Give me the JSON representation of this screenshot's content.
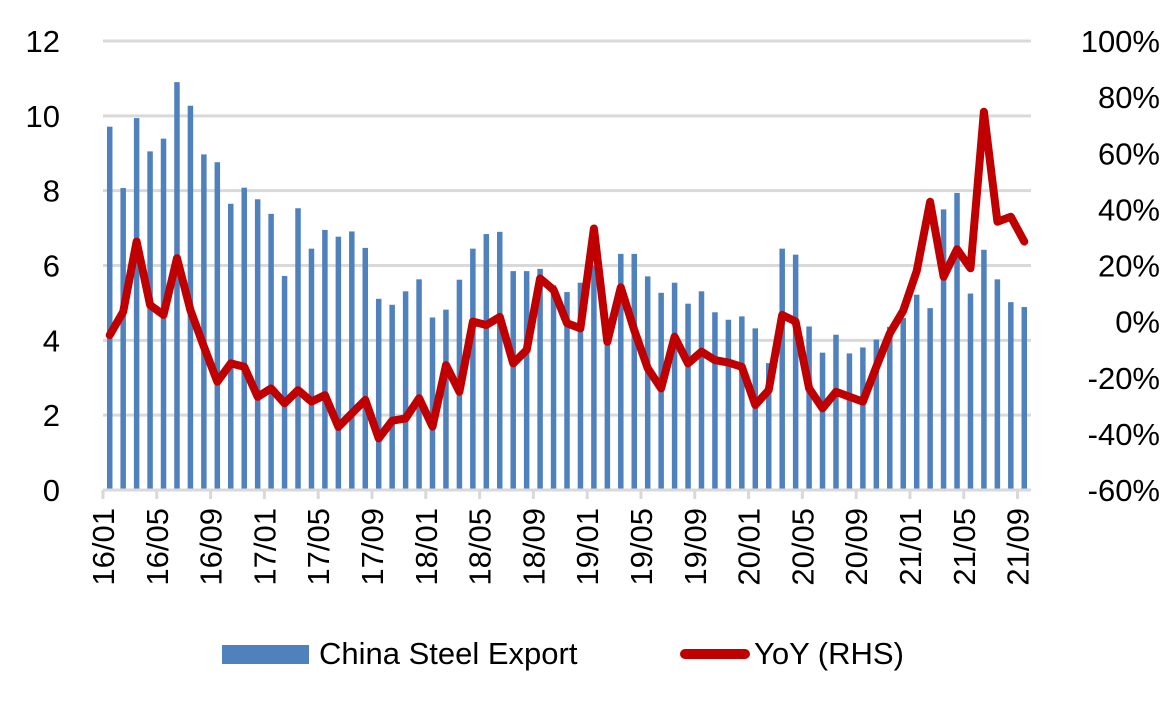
{
  "chart_data": {
    "type": "bar",
    "title": "",
    "xlabel": "",
    "ylabel": "",
    "y2label": "",
    "ylim": [
      0,
      12
    ],
    "y2lim": [
      -60,
      100
    ],
    "grid": true,
    "legend_position": "bottom",
    "yticks": [
      "0",
      "2",
      "4",
      "6",
      "8",
      "10",
      "12"
    ],
    "y2ticks": [
      "-60%",
      "-40%",
      "-20%",
      "0%",
      "20%",
      "40%",
      "60%",
      "80%",
      "100%"
    ],
    "x_tick_labels": [
      "16/01",
      "16/05",
      "16/09",
      "17/01",
      "17/05",
      "17/09",
      "18/01",
      "18/05",
      "18/09",
      "19/01",
      "19/05",
      "19/09",
      "20/01",
      "20/05",
      "20/09",
      "21/01",
      "21/05",
      "21/09"
    ],
    "categories": [
      "16/01",
      "16/02",
      "16/03",
      "16/04",
      "16/05",
      "16/06",
      "16/07",
      "16/08",
      "16/09",
      "16/10",
      "16/11",
      "16/12",
      "17/01",
      "17/02",
      "17/03",
      "17/04",
      "17/05",
      "17/06",
      "17/07",
      "17/08",
      "17/09",
      "17/10",
      "17/11",
      "17/12",
      "18/01",
      "18/02",
      "18/03",
      "18/04",
      "18/05",
      "18/06",
      "18/07",
      "18/08",
      "18/09",
      "18/10",
      "18/11",
      "18/12",
      "19/01",
      "19/02",
      "19/03",
      "19/04",
      "19/05",
      "19/06",
      "19/07",
      "19/08",
      "19/09",
      "19/10",
      "19/11",
      "19/12",
      "20/01",
      "20/02",
      "20/03",
      "20/04",
      "20/05",
      "20/06",
      "20/07",
      "20/08",
      "20/09",
      "20/10",
      "20/11",
      "20/12",
      "21/01",
      "21/02",
      "21/03",
      "21/04",
      "21/05",
      "21/06",
      "21/07",
      "21/08",
      "21/09"
    ],
    "series": [
      {
        "name": "China Steel Export",
        "type": "bar",
        "axis": "left",
        "color": "#4f81bd",
        "values": [
          9.71,
          8.07,
          9.94,
          9.05,
          9.39,
          10.9,
          10.27,
          8.97,
          8.76,
          7.65,
          8.08,
          7.77,
          7.38,
          5.72,
          7.53,
          6.45,
          6.95,
          6.77,
          6.91,
          6.47,
          5.11,
          4.95,
          5.31,
          5.63,
          4.61,
          4.82,
          5.62,
          6.45,
          6.84,
          6.9,
          5.85,
          5.85,
          5.91,
          5.47,
          5.29,
          5.54,
          6.0,
          4.4,
          6.31,
          6.31,
          5.71,
          5.27,
          5.54,
          4.98,
          5.31,
          4.75,
          4.55,
          4.64,
          4.32,
          3.39,
          6.45,
          6.29,
          4.37,
          3.67,
          4.15,
          3.65,
          3.81,
          4.02,
          4.36,
          4.6,
          5.22,
          4.86,
          7.5,
          7.94,
          5.25,
          6.42,
          5.63,
          5.02,
          4.89
        ]
      },
      {
        "name": "YoY (RHS)",
        "type": "line",
        "axis": "right",
        "unit": "%",
        "color": "#c00000",
        "values": [
          -4.8,
          3.5,
          28.5,
          5.9,
          2.4,
          22.6,
          4.1,
          -8.9,
          -21.4,
          -14.9,
          -16.1,
          -26.8,
          -23.8,
          -29.1,
          -24.4,
          -28.5,
          -26.2,
          -37.5,
          -32.7,
          -27.9,
          -41.6,
          -35.3,
          -34.5,
          -27.3,
          -37.4,
          -15.5,
          -25.0,
          0.0,
          -1.2,
          1.7,
          -14.9,
          -10.1,
          15.4,
          11.3,
          -0.6,
          -2.4,
          33.2,
          -7.2,
          12.2,
          -3.0,
          -16.6,
          -23.8,
          -5.4,
          -14.9,
          -10.7,
          -13.7,
          -14.6,
          -16.1,
          -29.7,
          -24.4,
          2.4,
          0.0,
          -23.8,
          -30.9,
          -25.0,
          -26.8,
          -28.5,
          -16.1,
          -4.2,
          3.9,
          18.0,
          42.7,
          16.0,
          25.8,
          19.0,
          74.8,
          35.6,
          37.4,
          28.5
        ]
      }
    ]
  },
  "legend": {
    "items": [
      {
        "label": "China Steel Export"
      },
      {
        "label": "YoY (RHS)"
      }
    ]
  }
}
